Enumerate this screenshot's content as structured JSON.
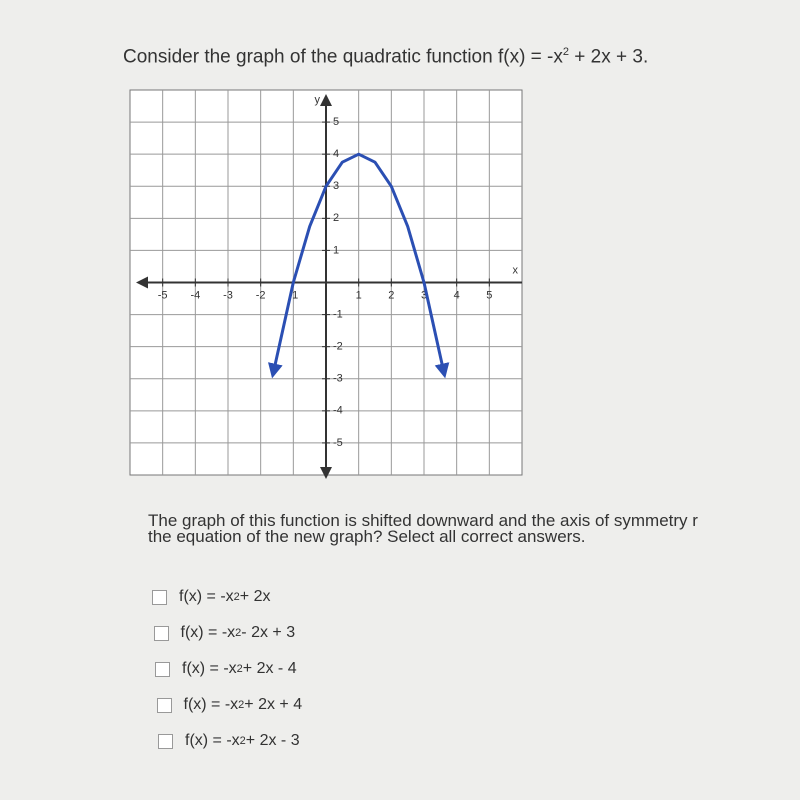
{
  "question": {
    "title": {
      "before": "Consider the graph of the quadratic function f(x) = -x",
      "sup": "2",
      "after": " + 2x + 3."
    },
    "prompt_lines": [
      "The graph of this function is shifted downward and the axis of symmetry r",
      "the equation of the new graph? Select all correct answers."
    ],
    "options": [
      {
        "before": "f(x) = -x",
        "sup": "2",
        "after": " + 2x"
      },
      {
        "before": "f(x) = -x",
        "sup": "2",
        "after": " - 2x + 3"
      },
      {
        "before": "f(x) = -x",
        "sup": "2",
        "after": " + 2x - 4"
      },
      {
        "before": "f(x) = -x",
        "sup": "2",
        "after": " + 2x + 4"
      },
      {
        "before": "f(x) = -x",
        "sup": "2",
        "after": " + 2x - 3"
      }
    ]
  },
  "graph": {
    "type": "line",
    "x_label": "x",
    "y_label": "y",
    "color": "#2b4fb3",
    "x": [
      -1.6,
      -1,
      -0.5,
      0,
      0.5,
      1,
      1.5,
      2,
      2.5,
      3,
      3.6
    ],
    "y": [
      -2.76,
      0,
      1.75,
      3,
      3.75,
      4,
      3.75,
      3,
      1.75,
      0,
      -2.76
    ],
    "xlim": [
      -6,
      6
    ],
    "ylim": [
      -6,
      6
    ],
    "xticks": [
      -5,
      -4,
      -3,
      -2,
      -1,
      1,
      2,
      3,
      4,
      5
    ],
    "yticks": [
      -5,
      -4,
      -3,
      -2,
      -1,
      1,
      2,
      3,
      4,
      5
    ],
    "grid": true
  }
}
